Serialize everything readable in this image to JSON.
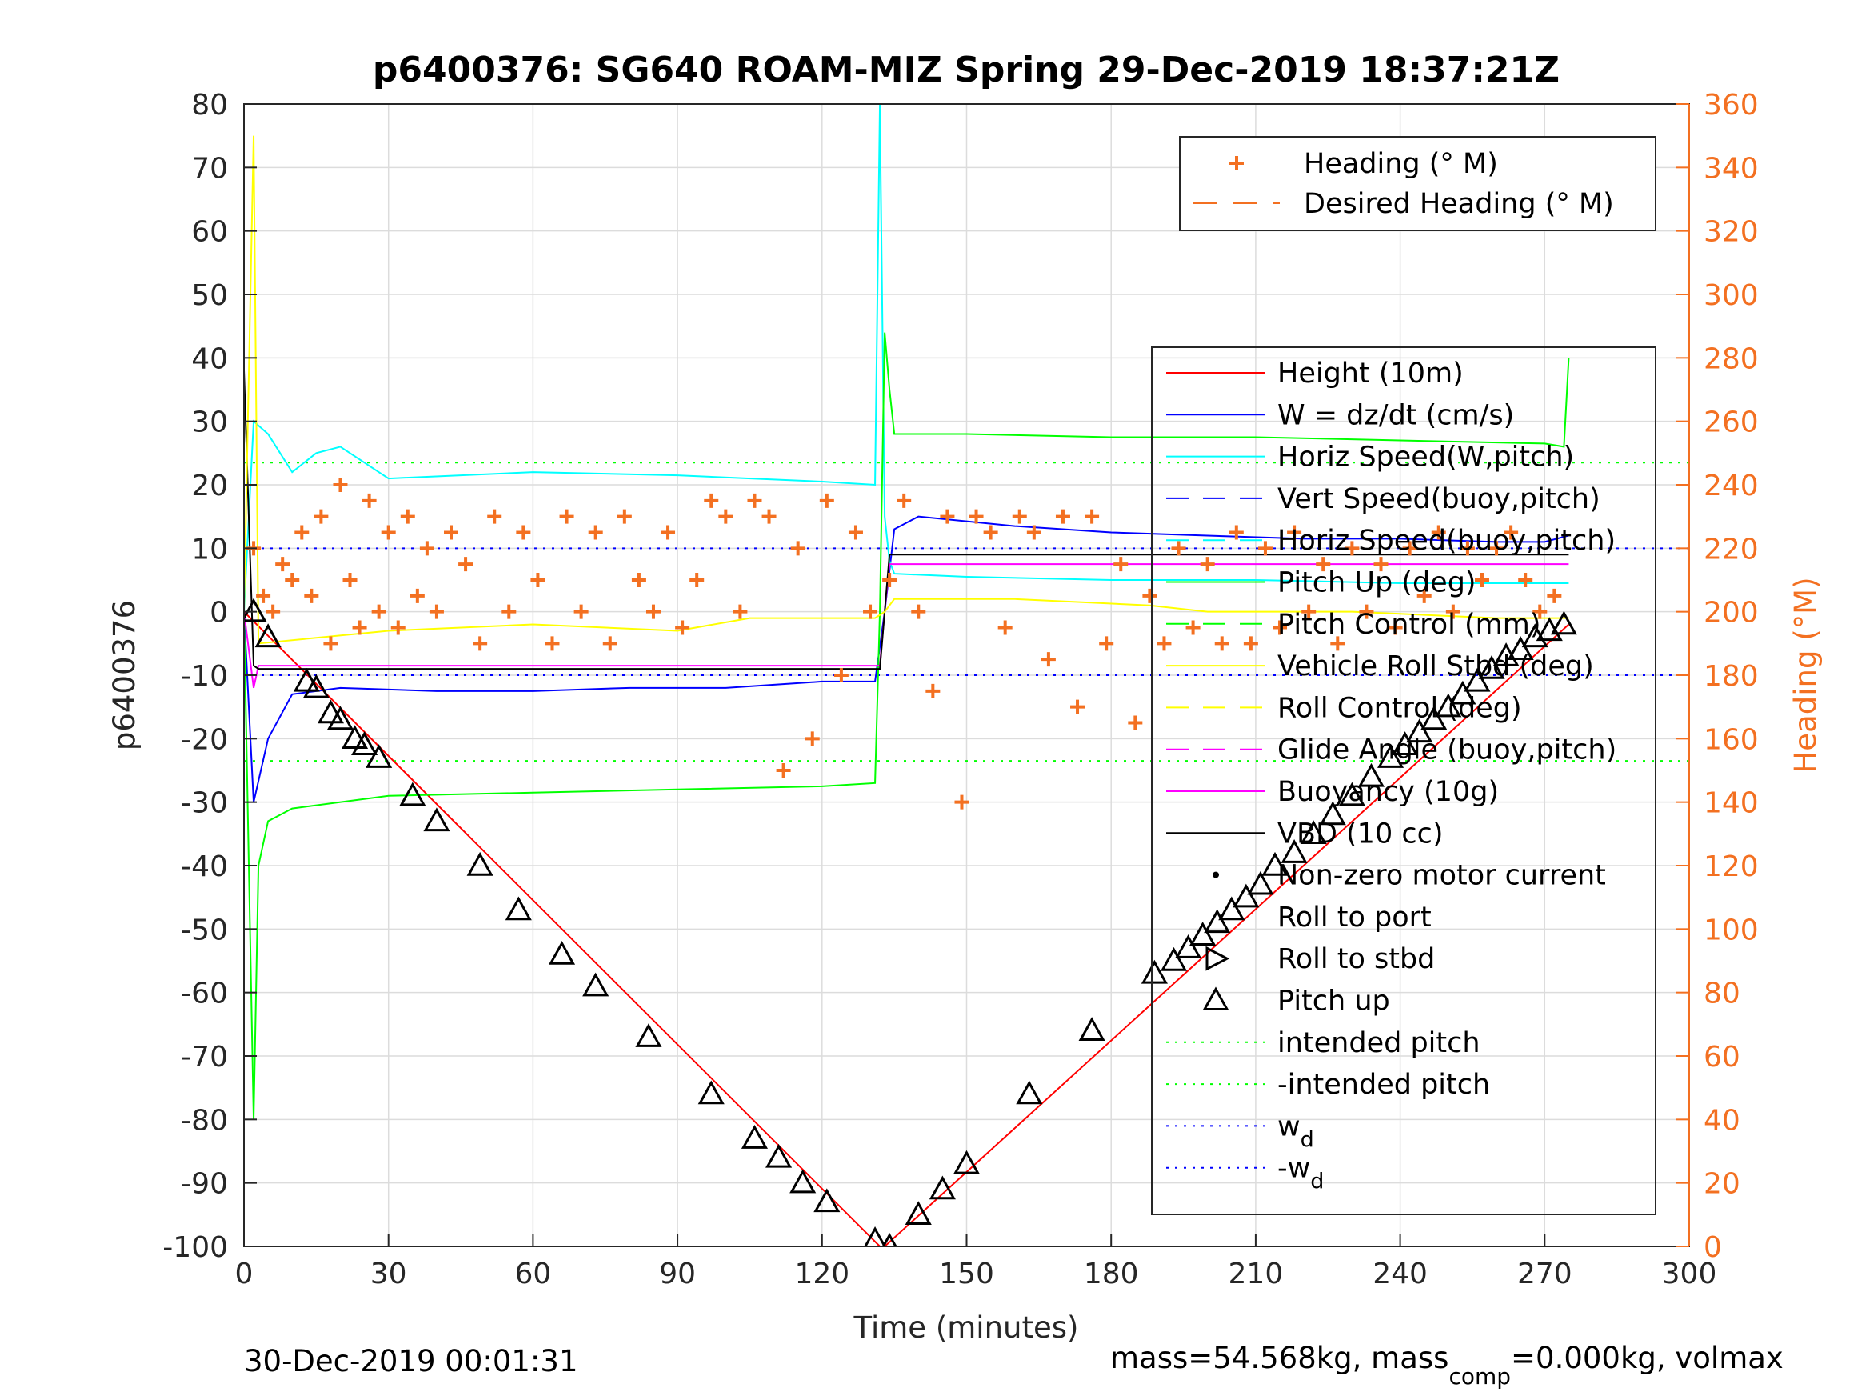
{
  "chart_data": {
    "type": "line",
    "title": "p6400376: SG640 ROAM-MIZ Spring 29-Dec-2019 18:37:21Z",
    "xlabel": "Time (minutes)",
    "ylabel": "p6400376",
    "ylabel_right": "Heading (°M)",
    "xlim": [
      0,
      300
    ],
    "ylim": [
      -100,
      80
    ],
    "ylim_right": [
      0,
      360
    ],
    "x_ticks": [
      "0",
      "30",
      "60",
      "90",
      "120",
      "150",
      "180",
      "210",
      "240",
      "270",
      "300"
    ],
    "y_ticks": [
      "80",
      "70",
      "60",
      "50",
      "40",
      "30",
      "20",
      "10",
      "0",
      "-10",
      "-20",
      "-30",
      "-40",
      "-50",
      "-60",
      "-70",
      "-80",
      "-90",
      "-100"
    ],
    "y_right_ticks": [
      "360",
      "340",
      "320",
      "300",
      "280",
      "260",
      "240",
      "220",
      "200",
      "180",
      "160",
      "140",
      "120",
      "100",
      "80",
      "60",
      "40",
      "20",
      "0"
    ],
    "grid": true,
    "footer_left": "30-Dec-2019 00:01:31",
    "footer_right": {
      "pre": "mass=54.568kg, mass",
      "sub": "comp",
      "post": "=0.000kg, volmax"
    },
    "legend_heading": [
      {
        "label": "Heading (° M)",
        "marker": "plus",
        "color": "#f37021"
      },
      {
        "label": "Desired Heading (° M)",
        "style": "dash",
        "color": "#f37021"
      }
    ],
    "legend_main": [
      {
        "label": "Height (10m)",
        "style": "line",
        "color": "#ff0000"
      },
      {
        "label": "W = dz/dt (cm/s)",
        "style": "line",
        "color": "#0000ff"
      },
      {
        "label": "Horiz Speed(W,pitch)",
        "style": "line",
        "color": "#00ffff"
      },
      {
        "label": "Vert Speed(buoy,pitch)",
        "style": "dash",
        "color": "#0000ff"
      },
      {
        "label": "Horiz Speed(buoy,pitch)",
        "style": "dash",
        "color": "#00ffff"
      },
      {
        "label": "Pitch Up (deg)",
        "style": "line",
        "color": "#00ff00"
      },
      {
        "label": "Pitch Control (mm)",
        "style": "dash",
        "color": "#00ff00"
      },
      {
        "label": "Vehicle Roll Stbd (deg)",
        "style": "line",
        "color": "#ffff00"
      },
      {
        "label": "Roll Control (deg)",
        "style": "dash",
        "color": "#ffff00"
      },
      {
        "label": "Glide Angle (buoy,pitch)",
        "style": "dash",
        "color": "#ff00ff"
      },
      {
        "label": "Buoyancy (10g)",
        "style": "line",
        "color": "#ff00ff"
      },
      {
        "label": "VBD (10 cc)",
        "style": "line",
        "color": "#000000"
      },
      {
        "label": "Non-zero motor current",
        "style": "dot",
        "color": "#000000"
      },
      {
        "label": "Roll to port",
        "style": "tri-left",
        "color": "#000000"
      },
      {
        "label": "Roll to stbd",
        "style": "tri-right",
        "color": "#000000"
      },
      {
        "label": "Pitch up",
        "style": "tri-up",
        "color": "#000000"
      },
      {
        "label": "intended pitch",
        "style": "dot-line",
        "color": "#00ff00"
      },
      {
        "label": "-intended pitch",
        "style": "dot-line",
        "color": "#00ff00"
      },
      {
        "label": "w",
        "sub": "d",
        "style": "dot-line",
        "color": "#0000ff"
      },
      {
        "label": "-w",
        "sub": "d",
        "style": "dot-line",
        "color": "#0000ff"
      }
    ],
    "series": [
      {
        "name": "Height (10m)",
        "color": "#ff0000",
        "x": [
          0,
          132,
          133,
          275
        ],
        "y": [
          0,
          -100,
          -100,
          -2
        ]
      },
      {
        "name": "W = dz/dt (cm/s)",
        "color": "#0000ff",
        "x": [
          0,
          2,
          5,
          10,
          20,
          40,
          60,
          80,
          100,
          120,
          131,
          133,
          135,
          140,
          160,
          180,
          200,
          220,
          240,
          260,
          270,
          275
        ],
        "y": [
          0,
          -30,
          -20,
          -13,
          -12,
          -12.5,
          -12.5,
          -12,
          -12,
          -11,
          -11,
          0,
          13,
          15,
          13.5,
          12.5,
          12,
          11.5,
          11.5,
          11,
          11,
          12
        ]
      },
      {
        "name": "Horiz Speed(W,pitch)",
        "color": "#00ffff",
        "x": [
          0,
          2,
          5,
          10,
          15,
          20,
          30,
          60,
          90,
          120,
          131,
          132,
          133,
          134,
          135,
          150,
          180,
          210,
          240,
          270,
          275
        ],
        "y": [
          0,
          30,
          28,
          22,
          25,
          26,
          21,
          22,
          21.5,
          20.5,
          20,
          80,
          15,
          8,
          6,
          5.5,
          5,
          5,
          4.5,
          4.5,
          4.5
        ]
      },
      {
        "name": "Pitch Up (deg)",
        "color": "#00ff00",
        "x": [
          0,
          2,
          3,
          5,
          10,
          30,
          60,
          90,
          120,
          131,
          132,
          133,
          134,
          135,
          150,
          180,
          210,
          240,
          270,
          274,
          275
        ],
        "y": [
          0,
          -80,
          -40,
          -33,
          -31,
          -29,
          -28.5,
          -28,
          -27.5,
          -27,
          0,
          44,
          35,
          28,
          28,
          27.5,
          27.5,
          27,
          26.5,
          26,
          40
        ]
      },
      {
        "name": "Buoyancy (10g)",
        "color": "#ff00ff",
        "x": [
          0,
          2,
          3,
          132,
          133,
          134,
          275
        ],
        "y": [
          0,
          -12,
          -8.5,
          -8.5,
          0,
          7.5,
          7.5
        ]
      },
      {
        "name": "VBD (10 cc)",
        "color": "#000000",
        "x": [
          0,
          2,
          3,
          132,
          133,
          134,
          275
        ],
        "y": [
          38,
          -8.5,
          -9,
          -9,
          0,
          9,
          9
        ]
      },
      {
        "name": "Vehicle Roll Stbd (deg)",
        "color": "#ffff00",
        "x": [
          0,
          2,
          3,
          30,
          60,
          90,
          105,
          131,
          133,
          135,
          160,
          188,
          200,
          230,
          260,
          275
        ],
        "y": [
          0,
          75,
          -5,
          -3,
          -2,
          -3,
          -1,
          -1,
          0,
          2,
          2,
          1,
          0,
          0,
          -1,
          -1
        ]
      }
    ],
    "heading_points": {
      "name": "Heading (° M)",
      "x": [
        2,
        4,
        6,
        8,
        10,
        12,
        14,
        16,
        18,
        20,
        22,
        24,
        26,
        28,
        30,
        32,
        34,
        36,
        38,
        40,
        43,
        46,
        49,
        52,
        55,
        58,
        61,
        64,
        67,
        70,
        73,
        76,
        79,
        82,
        85,
        88,
        91,
        94,
        97,
        100,
        103,
        106,
        109,
        112,
        115,
        118,
        121,
        124,
        127,
        130,
        134,
        137,
        140,
        143,
        146,
        149,
        152,
        155,
        158,
        161,
        164,
        167,
        170,
        173,
        176,
        179,
        182,
        185,
        188,
        191,
        194,
        197,
        200,
        203,
        206,
        209,
        212,
        215,
        218,
        221,
        224,
        227,
        230,
        233,
        236,
        239,
        242,
        245,
        248,
        251,
        254,
        257,
        260,
        263,
        266,
        269,
        272
      ],
      "y": [
        220,
        205,
        200,
        215,
        210,
        225,
        205,
        230,
        190,
        240,
        210,
        195,
        235,
        200,
        225,
        195,
        230,
        205,
        220,
        200,
        225,
        215,
        190,
        230,
        200,
        225,
        210,
        190,
        230,
        200,
        225,
        190,
        230,
        210,
        200,
        225,
        195,
        210,
        235,
        230,
        200,
        235,
        230,
        150,
        220,
        160,
        235,
        180,
        225,
        200,
        210,
        235,
        200,
        175,
        230,
        140,
        230,
        225,
        195,
        230,
        225,
        185,
        230,
        170,
        230,
        190,
        215,
        165,
        205,
        190,
        220,
        195,
        215,
        190,
        225,
        190,
        220,
        195,
        225,
        200,
        215,
        190,
        220,
        200,
        215,
        195,
        220,
        205,
        225,
        200,
        220,
        210,
        220,
        225,
        210,
        200,
        205
      ]
    },
    "intended_pitch": [
      23.5,
      -23.5
    ],
    "w_desired": [
      10,
      -10
    ],
    "markers": {
      "x": [
        2,
        5,
        13,
        15,
        18,
        20,
        23,
        25,
        28,
        35,
        40,
        49,
        57,
        66,
        73,
        84,
        97,
        106,
        111,
        116,
        121,
        131,
        134,
        140,
        145,
        150,
        163,
        176,
        189,
        193,
        196,
        199,
        202,
        205,
        208,
        211,
        214,
        218,
        222,
        226,
        230,
        234,
        238,
        241,
        244,
        247,
        250,
        253,
        256,
        259,
        262,
        265,
        268,
        271,
        274
      ],
      "y": [
        0,
        -4,
        -11,
        -12,
        -16,
        -17,
        -20,
        -21,
        -23,
        -29,
        -33,
        -40,
        -47,
        -54,
        -59,
        -67,
        -76,
        -83,
        -86,
        -90,
        -93,
        -99,
        -100,
        -95,
        -91,
        -87,
        -76,
        -66,
        -57,
        -55,
        -53,
        -51,
        -49,
        -47,
        -45,
        -43,
        -40,
        -38,
        -35,
        -32,
        -29,
        -26,
        -23,
        -21,
        -19,
        -17,
        -15,
        -13,
        -11,
        -9,
        -7,
        -6,
        -4,
        -3,
        -2
      ]
    }
  }
}
